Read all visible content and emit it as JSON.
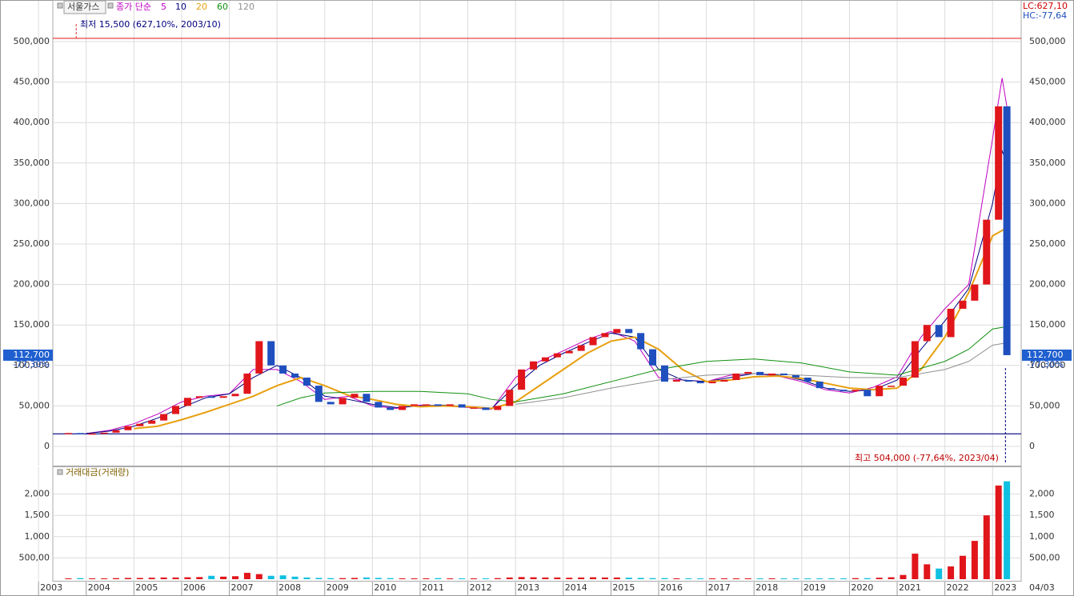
{
  "chart_data": [
    {
      "type": "candlestick",
      "title": "서울가스",
      "ma_label": "종가 단순",
      "x": [
        2003.625,
        2003.875,
        2004.125,
        2004.375,
        2004.625,
        2004.875,
        2005.125,
        2005.375,
        2005.625,
        2005.875,
        2006.125,
        2006.375,
        2006.625,
        2006.875,
        2007.125,
        2007.375,
        2007.625,
        2007.875,
        2008.125,
        2008.375,
        2008.625,
        2008.875,
        2009.125,
        2009.375,
        2009.625,
        2009.875,
        2010.125,
        2010.375,
        2010.625,
        2010.875,
        2011.125,
        2011.375,
        2011.625,
        2011.875,
        2012.125,
        2012.375,
        2012.625,
        2012.875,
        2013.125,
        2013.375,
        2013.625,
        2013.875,
        2014.125,
        2014.375,
        2014.625,
        2014.875,
        2015.125,
        2015.375,
        2015.625,
        2015.875,
        2016.125,
        2016.375,
        2016.625,
        2016.875,
        2017.125,
        2017.375,
        2017.625,
        2017.875,
        2018.125,
        2018.375,
        2018.625,
        2018.875,
        2019.125,
        2019.375,
        2019.625,
        2019.875,
        2020.125,
        2020.375,
        2020.625,
        2020.875,
        2021.125,
        2021.375,
        2021.625,
        2021.875,
        2022.125,
        2022.375,
        2022.625,
        2022.875,
        2023.125,
        2023.3
      ],
      "close": [
        16500,
        15500,
        16000,
        17000,
        20000,
        25000,
        28000,
        32000,
        40000,
        50000,
        60000,
        62000,
        60000,
        62000,
        65000,
        90000,
        130000,
        100000,
        90000,
        85000,
        75000,
        55000,
        52000,
        60000,
        65000,
        55000,
        48000,
        45000,
        50000,
        52000,
        52000,
        50000,
        52000,
        48000,
        48000,
        45000,
        50000,
        70000,
        95000,
        105000,
        110000,
        115000,
        118000,
        125000,
        135000,
        140000,
        145000,
        140000,
        120000,
        100000,
        80000,
        82000,
        80000,
        78000,
        80000,
        82000,
        90000,
        92000,
        88000,
        90000,
        88000,
        85000,
        80000,
        72000,
        70000,
        68000,
        70000,
        62000,
        75000,
        75000,
        85000,
        130000,
        150000,
        135000,
        170000,
        180000,
        200000,
        280000,
        420000,
        112700
      ],
      "up_color": "#e0161b",
      "down_color": "#1f4fbf",
      "ma_series": [
        {
          "name": "5",
          "color": "#c000c0",
          "x": [
            2004,
            2004.5,
            2005,
            2005.5,
            2006,
            2006.5,
            2007,
            2007.5,
            2008,
            2008.5,
            2009,
            2009.5,
            2010,
            2010.5,
            2011,
            2011.5,
            2012,
            2012.5,
            2013,
            2013.5,
            2014,
            2014.5,
            2015,
            2015.5,
            2016,
            2016.5,
            2017,
            2017.5,
            2018,
            2018.5,
            2019,
            2019.5,
            2020,
            2020.5,
            2021,
            2021.5,
            2022,
            2022.5,
            2023,
            2023.2,
            2023.3
          ],
          "values": [
            16000,
            20000,
            28000,
            40000,
            55000,
            62000,
            65000,
            95000,
            95000,
            80000,
            58000,
            62000,
            50000,
            47000,
            51000,
            50000,
            48000,
            46000,
            85000,
            105000,
            118000,
            132000,
            142000,
            130000,
            85000,
            82000,
            80000,
            88000,
            90000,
            87000,
            80000,
            70000,
            66000,
            73000,
            86000,
            135000,
            170000,
            200000,
            380000,
            455000,
            420000
          ]
        },
        {
          "name": "10",
          "color": "#000080",
          "x": [
            2004,
            2004.5,
            2005,
            2005.5,
            2006,
            2006.5,
            2007,
            2007.5,
            2008,
            2008.5,
            2009,
            2009.5,
            2010,
            2010.5,
            2011,
            2011.5,
            2012,
            2012.5,
            2013,
            2013.5,
            2014,
            2014.5,
            2015,
            2015.5,
            2016,
            2016.5,
            2017,
            2017.5,
            2018,
            2018.5,
            2019,
            2019.5,
            2020,
            2020.5,
            2021,
            2021.5,
            2022,
            2022.5,
            2023,
            2023.2,
            2023.3
          ],
          "values": [
            16000,
            19000,
            25000,
            35000,
            48000,
            60000,
            65000,
            85000,
            100000,
            85000,
            62000,
            58000,
            52000,
            48000,
            50000,
            51000,
            49000,
            47000,
            75000,
            100000,
            115000,
            128000,
            140000,
            135000,
            95000,
            82000,
            80000,
            85000,
            90000,
            88000,
            82000,
            72000,
            68000,
            70000,
            82000,
            120000,
            155000,
            195000,
            300000,
            365000,
            350000
          ]
        },
        {
          "name": "20",
          "color": "#e8a010",
          "x": [
            2005,
            2005.5,
            2006,
            2006.5,
            2007,
            2007.5,
            2008,
            2008.5,
            2009,
            2009.5,
            2010,
            2010.5,
            2011,
            2011.5,
            2012,
            2012.5,
            2013,
            2013.5,
            2014,
            2014.5,
            2015,
            2015.5,
            2016,
            2016.5,
            2017,
            2017.5,
            2018,
            2018.5,
            2019,
            2019.5,
            2020,
            2020.5,
            2021,
            2021.5,
            2022,
            2022.5,
            2023,
            2023.3
          ],
          "values": [
            22000,
            25000,
            33000,
            42000,
            52000,
            62000,
            75000,
            85000,
            75000,
            63000,
            58000,
            52000,
            49000,
            50000,
            49000,
            47000,
            55000,
            75000,
            95000,
            115000,
            130000,
            135000,
            120000,
            95000,
            80000,
            82000,
            86000,
            87000,
            84000,
            78000,
            72000,
            70000,
            72000,
            95000,
            135000,
            190000,
            260000,
            270000
          ]
        },
        {
          "name": "60",
          "color": "#109010",
          "x": [
            2008,
            2008.5,
            2009,
            2010,
            2011,
            2012,
            2012.5,
            2013,
            2014,
            2015,
            2016,
            2017,
            2018,
            2019,
            2020,
            2021,
            2022,
            2022.5,
            2023,
            2023.3
          ],
          "values": [
            50000,
            60000,
            66000,
            68000,
            68000,
            65000,
            58000,
            55000,
            65000,
            80000,
            95000,
            105000,
            108000,
            103000,
            92000,
            88000,
            105000,
            120000,
            145000,
            148000
          ]
        },
        {
          "name": "120",
          "color": "#909090",
          "x": [
            2013,
            2014,
            2015,
            2016,
            2017,
            2018,
            2019,
            2020,
            2021,
            2022,
            2022.5,
            2023,
            2023.3
          ],
          "values": [
            52000,
            60000,
            72000,
            82000,
            88000,
            90000,
            88000,
            85000,
            85000,
            95000,
            105000,
            125000,
            128000
          ]
        }
      ],
      "xlim": [
        2003.35,
        2023.6
      ],
      "ylim": [
        -23700,
        549400
      ],
      "yticks": [
        0,
        {
          "value": 50000,
          "label": "50,000"
        },
        {
          "value": 100000,
          "label": "100,000"
        },
        {
          "value": 150000,
          "label": "150,000"
        },
        {
          "value": 200000,
          "label": "200,000"
        },
        {
          "value": 250000,
          "label": "250,000"
        },
        {
          "value": 300000,
          "label": "300,000"
        },
        {
          "value": 350000,
          "label": "350,000"
        },
        {
          "value": 400000,
          "label": "400,000"
        },
        {
          "value": 450000,
          "label": "450,000"
        },
        {
          "value": 500000,
          "label": "500,000"
        }
      ],
      "current_price": {
        "value": 112700,
        "label": "112,700"
      },
      "current_change": "-77,30%",
      "lc_label": "LC:627,10",
      "hc_label": "HC:-77,64",
      "low_annotation": "최저 15,500 (627,10%, 2003/10)",
      "high_annotation": "최고 504,000 (-77,64%, 2023/04)",
      "reference_lines": [
        {
          "value": 504000,
          "color": "#e03030"
        },
        {
          "value": 15500,
          "color": "#000080"
        }
      ],
      "extreme_dates_x": [
        2003.79,
        2023.27
      ]
    },
    {
      "type": "bar",
      "title": "거래대금(거래량)",
      "x": [
        2003.625,
        2003.875,
        2004.125,
        2004.375,
        2004.625,
        2004.875,
        2005.125,
        2005.375,
        2005.625,
        2005.875,
        2006.125,
        2006.375,
        2006.625,
        2006.875,
        2007.125,
        2007.375,
        2007.625,
        2007.875,
        2008.125,
        2008.375,
        2008.625,
        2008.875,
        2009.125,
        2009.375,
        2009.625,
        2009.875,
        2010.125,
        2010.375,
        2010.625,
        2010.875,
        2011.125,
        2011.375,
        2011.625,
        2011.875,
        2012.125,
        2012.375,
        2012.625,
        2012.875,
        2013.125,
        2013.375,
        2013.625,
        2013.875,
        2014.125,
        2014.375,
        2014.625,
        2014.875,
        2015.125,
        2015.375,
        2015.625,
        2015.875,
        2016.125,
        2016.375,
        2016.625,
        2016.875,
        2017.125,
        2017.375,
        2017.625,
        2017.875,
        2018.125,
        2018.375,
        2018.625,
        2018.875,
        2019.125,
        2019.375,
        2019.625,
        2019.875,
        2020.125,
        2020.375,
        2020.625,
        2020.875,
        2021.125,
        2021.375,
        2021.625,
        2021.875,
        2022.125,
        2022.375,
        2022.625,
        2022.875,
        2023.125,
        2023.3
      ],
      "values": [
        20,
        25,
        20,
        20,
        25,
        30,
        30,
        35,
        40,
        40,
        45,
        50,
        80,
        60,
        70,
        150,
        120,
        80,
        90,
        60,
        40,
        30,
        25,
        25,
        30,
        40,
        30,
        25,
        20,
        20,
        20,
        25,
        20,
        20,
        20,
        20,
        25,
        40,
        50,
        45,
        40,
        40,
        35,
        40,
        45,
        40,
        40,
        35,
        30,
        25,
        25,
        20,
        20,
        20,
        20,
        20,
        20,
        20,
        20,
        20,
        20,
        20,
        20,
        20,
        20,
        20,
        25,
        25,
        35,
        45,
        100,
        600,
        350,
        250,
        300,
        550,
        900,
        1500,
        2200,
        2300
      ],
      "up_color": "#e0161b",
      "down_color": "#10c0e0",
      "xlim": [
        2003.35,
        2023.6
      ],
      "ylim": [
        0,
        2650
      ],
      "yticks": [
        {
          "value": 500,
          "label": "500,00"
        },
        {
          "value": 1000,
          "label": "1,000"
        },
        {
          "value": 1500,
          "label": "1,500"
        },
        {
          "value": 2000,
          "label": "2,000"
        }
      ],
      "xticks": [
        2003,
        2004,
        2005,
        2006,
        2007,
        2008,
        2009,
        2010,
        2011,
        2012,
        2013,
        2014,
        2015,
        2016,
        2017,
        2018,
        2019,
        2020,
        2021,
        2022,
        2023
      ],
      "x_end_label": "04/03"
    }
  ]
}
